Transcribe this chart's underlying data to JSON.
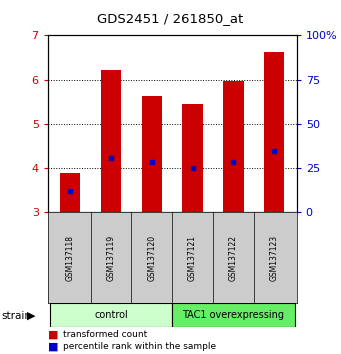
{
  "title": "GDS2451 / 261850_at",
  "samples": [
    "GSM137118",
    "GSM137119",
    "GSM137120",
    "GSM137121",
    "GSM137122",
    "GSM137123"
  ],
  "bar_bottoms": [
    3.0,
    3.0,
    3.0,
    3.0,
    3.0,
    3.0
  ],
  "bar_tops": [
    3.88,
    6.22,
    5.62,
    5.45,
    5.97,
    6.62
  ],
  "percentile_values": [
    3.48,
    4.24,
    4.14,
    4.01,
    4.13,
    4.38
  ],
  "bar_color": "#cc0000",
  "percentile_color": "#0000cc",
  "ylim_left": [
    3,
    7
  ],
  "ylim_right": [
    0,
    100
  ],
  "yticks_left": [
    3,
    4,
    5,
    6,
    7
  ],
  "yticks_right": [
    0,
    25,
    50,
    75,
    100
  ],
  "ytick_labels_right": [
    "0",
    "25",
    "50",
    "75",
    "100%"
  ],
  "groups": [
    {
      "label": "control",
      "indices": [
        0,
        1,
        2
      ],
      "color": "#ccffcc"
    },
    {
      "label": "TAC1 overexpressing",
      "indices": [
        3,
        4,
        5
      ],
      "color": "#66ee66"
    }
  ],
  "strain_label": "strain",
  "legend_items": [
    {
      "color": "#cc0000",
      "label": "transformed count"
    },
    {
      "color": "#0000cc",
      "label": "percentile rank within the sample"
    }
  ],
  "bar_width": 0.5,
  "background_color": "#ffffff",
  "tick_label_area_color": "#cccccc",
  "grid_color": "#000000"
}
